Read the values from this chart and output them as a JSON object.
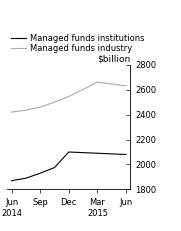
{
  "title": "$billion",
  "legend_entries": [
    "Managed funds institutions",
    "Managed funds industry"
  ],
  "x_labels": [
    "Jun\n2014",
    "Sep",
    "Dec",
    "Mar\n2015",
    "Jun"
  ],
  "x_positions": [
    0,
    1,
    2,
    3,
    4
  ],
  "institutions_values": [
    1870,
    1890,
    1930,
    1975,
    2100,
    2090,
    2080
  ],
  "industry_values": [
    2420,
    2435,
    2460,
    2500,
    2545,
    2660,
    2630
  ],
  "institutions_x": [
    0,
    0.5,
    1,
    1.5,
    2,
    3,
    4
  ],
  "industry_x": [
    0,
    0.5,
    1,
    1.5,
    2,
    3,
    4
  ],
  "ylim": [
    1800,
    2800
  ],
  "yticks": [
    1800,
    2000,
    2200,
    2400,
    2600,
    2800
  ],
  "line_color_institutions": "#000000",
  "line_color_industry": "#aaaaaa",
  "background_color": "#ffffff",
  "title_fontsize": 6.5,
  "legend_fontsize": 6,
  "tick_fontsize": 6
}
